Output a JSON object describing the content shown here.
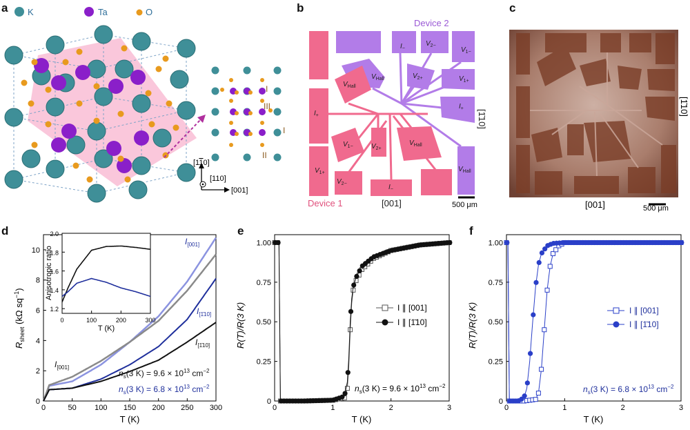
{
  "panels": {
    "a": "a",
    "b": "b",
    "c": "c",
    "d": "d",
    "e": "e",
    "f": "f"
  },
  "colors": {
    "teal": "#3f8f98",
    "purple": "#8a1fc9",
    "orange": "#e89a1e",
    "pink": "#f06a8e",
    "lavender": "#b27ce8",
    "navy": "#1f2f9c",
    "blueline": "#2a3fc8",
    "gray": "#8a8a8a"
  },
  "panel_a": {
    "legend": {
      "k": "K",
      "ta": "Ta",
      "o": "O"
    },
    "roman": {
      "i": "I",
      "ii": "II",
      "iii": "III"
    },
    "axes": {
      "hkl_1": "[1",
      "bar_1": "1",
      "tail_1": "0]",
      "hkl_2": "[110]",
      "hkl_3": "[001]"
    }
  },
  "panel_b": {
    "device1": "Device 1",
    "device2": "Device 2",
    "dir_bottom": "[001]",
    "dir_side": "[1̄10]",
    "scale": "500 μm",
    "pads": {
      "v_hall": "V",
      "v_hall_sub": "Hall",
      "i_plus": "I",
      "i_plus_sub": "+",
      "i_minus": "I",
      "i_minus_sub": "−",
      "v1m": "V",
      "v1m_sub": "1−",
      "v1p": "V",
      "v1p_sub": "1+",
      "v2p": "V",
      "v2p_sub": "2+",
      "v2m": "V",
      "v2m_sub": "2−"
    }
  },
  "panel_c": {
    "dir_bottom": "[001]",
    "dir_side": "[1̄10]",
    "scale": "500 μm"
  },
  "panel_d": {
    "ylabel_main": "R",
    "ylabel_sub": "sheet",
    "ylabel_unit": "(kΩ sq",
    "ylabel_sup": "−1",
    "ylabel_close": ")",
    "xlabel": "T (K)",
    "xticks": [
      "0",
      "50",
      "100",
      "150",
      "200",
      "250",
      "300"
    ],
    "yticks": [
      "0",
      "2",
      "4",
      "6",
      "8",
      "10"
    ],
    "inset": {
      "ylabel": "Anisotropic ratio",
      "xlabel": "T (K)",
      "xticks": [
        "0",
        "100",
        "200",
        "300"
      ],
      "yticks": [
        "1.2",
        "1.4",
        "1.6",
        "1.8",
        "2.0"
      ]
    },
    "curve_labels": {
      "i001_top": "I",
      "i001_top_sub": "[001]",
      "i110_mid": "I",
      "i110_mid_sub": "[1̄10]",
      "i110_low": "I",
      "i110_low_sub": "[1̄10]",
      "i001_left": "I",
      "i001_left_sub": "[001]"
    },
    "ns_black": "n",
    "ns_black_sub": "s",
    "ns_black_val": "(3 K) = 9.6 × 10",
    "ns_black_exp": "13",
    "ns_black_unit": " cm",
    "ns_black_unit_exp": "−2",
    "ns_blue": "n",
    "ns_blue_sub": "s",
    "ns_blue_val": "(3 K) = 6.8 × 10",
    "ns_blue_exp": "13",
    "ns_blue_unit": " cm",
    "ns_blue_unit_exp": "−2"
  },
  "panel_e": {
    "ylabel": "R(T)/R(3 K)",
    "xlabel": "T (K)",
    "xticks": [
      "0",
      "1",
      "2",
      "3"
    ],
    "yticks": [
      "0",
      "0.25",
      "0.50",
      "0.75",
      "1.00"
    ],
    "legend_001": "I ∥ [001]",
    "legend_110": "I ∥ [1̄10]",
    "ns": "n",
    "ns_sub": "s",
    "ns_val": "(3 K) = 9.6 × 10",
    "ns_exp": "13",
    "ns_unit": " cm",
    "ns_unit_exp": "−2"
  },
  "panel_f": {
    "ylabel": "R(T)/R(3 K)",
    "xlabel": "T (K)",
    "xticks": [
      "0",
      "1",
      "2",
      "3"
    ],
    "yticks": [
      "0",
      "0.25",
      "0.50",
      "0.75",
      "1.00"
    ],
    "legend_001": "I ∥ [001]",
    "legend_110": "I ∥ [1̄10]",
    "ns": "n",
    "ns_sub": "s",
    "ns_val": "(3 K) = 6.8 × 10",
    "ns_exp": "13",
    "ns_unit": " cm",
    "ns_unit_exp": "−2"
  },
  "chart_data": [
    {
      "type": "line",
      "panel": "d",
      "xlabel": "T (K)",
      "ylabel": "Rsheet (kΩ sq−1)",
      "xlim": [
        0,
        300
      ],
      "ylim": [
        0,
        11
      ],
      "series": [
        {
          "name": "I[001] (lavender, ns 6.8)",
          "color": "#8b93e0",
          "x": [
            0,
            10,
            50,
            100,
            150,
            200,
            250,
            300
          ],
          "y": [
            0,
            1.0,
            1.3,
            2.4,
            3.9,
            5.6,
            7.9,
            10.8
          ]
        },
        {
          "name": "I[1̄10] (navy, ns 6.8)",
          "color": "#1f2f9c",
          "x": [
            0,
            10,
            50,
            100,
            150,
            200,
            250,
            300
          ],
          "y": [
            0,
            0.75,
            0.85,
            1.45,
            2.4,
            3.6,
            5.4,
            8.1
          ]
        },
        {
          "name": "I[001] (gray, ns 9.6)",
          "color": "#8a8a8a",
          "x": [
            0,
            10,
            50,
            100,
            150,
            200,
            250,
            300
          ],
          "y": [
            0,
            1.05,
            1.6,
            2.65,
            3.9,
            5.3,
            7.3,
            9.7
          ]
        },
        {
          "name": "I[1̄10] (black, ns 9.6)",
          "color": "#111111",
          "x": [
            0,
            10,
            50,
            100,
            150,
            200,
            250,
            300
          ],
          "y": [
            0,
            0.75,
            0.85,
            1.3,
            1.95,
            2.7,
            3.9,
            5.2
          ]
        }
      ]
    },
    {
      "type": "line",
      "panel": "d-inset",
      "xlabel": "T (K)",
      "ylabel": "Anisotropic ratio",
      "xlim": [
        0,
        300
      ],
      "ylim": [
        1.15,
        2.0
      ],
      "series": [
        {
          "name": "ns 9.6",
          "color": "#111111",
          "x": [
            0,
            20,
            50,
            100,
            150,
            200,
            250,
            300
          ],
          "y": [
            1.27,
            1.42,
            1.62,
            1.82,
            1.86,
            1.865,
            1.85,
            1.83
          ]
        },
        {
          "name": "ns 6.8",
          "color": "#1f2f9c",
          "x": [
            0,
            20,
            50,
            100,
            150,
            200,
            250,
            300
          ],
          "y": [
            1.33,
            1.38,
            1.47,
            1.52,
            1.48,
            1.42,
            1.38,
            1.33
          ]
        }
      ]
    },
    {
      "type": "scatter",
      "panel": "e",
      "xlabel": "T (K)",
      "ylabel": "R(T)/R(3 K)",
      "xlim": [
        0,
        3
      ],
      "ylim": [
        0,
        1.05
      ],
      "series": [
        {
          "name": "I ∥ [001]",
          "marker": "open-square",
          "color": "#555555",
          "x": [
            0.1,
            0.5,
            1.0,
            1.2,
            1.25,
            1.28,
            1.3,
            1.32,
            1.35,
            1.4,
            1.5,
            1.7,
            2.0,
            2.5,
            3.0
          ],
          "y": [
            0,
            0,
            0.005,
            0.02,
            0.08,
            0.25,
            0.45,
            0.6,
            0.7,
            0.76,
            0.83,
            0.9,
            0.95,
            0.985,
            1.0
          ]
        },
        {
          "name": "I ∥ [1̄10]",
          "marker": "filled-circle",
          "color": "#111111",
          "x": [
            0.1,
            0.5,
            1.0,
            1.2,
            1.25,
            1.28,
            1.3,
            1.32,
            1.35,
            1.4,
            1.5,
            1.7,
            2.0,
            2.5,
            3.0
          ],
          "y": [
            0,
            0,
            0.005,
            0.03,
            0.12,
            0.3,
            0.5,
            0.63,
            0.72,
            0.78,
            0.85,
            0.91,
            0.95,
            0.985,
            1.0
          ]
        }
      ]
    },
    {
      "type": "scatter",
      "panel": "f",
      "xlabel": "T (K)",
      "ylabel": "R(T)/R(3 K)",
      "xlim": [
        0,
        3
      ],
      "ylim": [
        0,
        1.05
      ],
      "series": [
        {
          "name": "I ∥ [001]",
          "marker": "open-square",
          "color": "#2a3fc8",
          "x": [
            0.05,
            0.3,
            0.5,
            0.55,
            0.6,
            0.65,
            0.7,
            0.75,
            0.8,
            0.9,
            1.0,
            1.5,
            2.0,
            2.5,
            3.0
          ],
          "y": [
            0,
            0,
            0.01,
            0.05,
            0.2,
            0.45,
            0.7,
            0.85,
            0.93,
            0.98,
            1.0,
            1.0,
            1.0,
            1.0,
            1.0
          ]
        },
        {
          "name": "I ∥ [1̄10]",
          "marker": "filled-circle",
          "color": "#2a3fc8",
          "x": [
            0.05,
            0.2,
            0.3,
            0.35,
            0.4,
            0.45,
            0.5,
            0.55,
            0.6,
            0.7,
            0.8,
            1.0,
            1.5,
            2.0,
            3.0
          ],
          "y": [
            0,
            0,
            0.02,
            0.08,
            0.25,
            0.5,
            0.72,
            0.86,
            0.93,
            0.98,
            0.995,
            1.0,
            1.0,
            1.0,
            1.0
          ]
        }
      ]
    }
  ]
}
